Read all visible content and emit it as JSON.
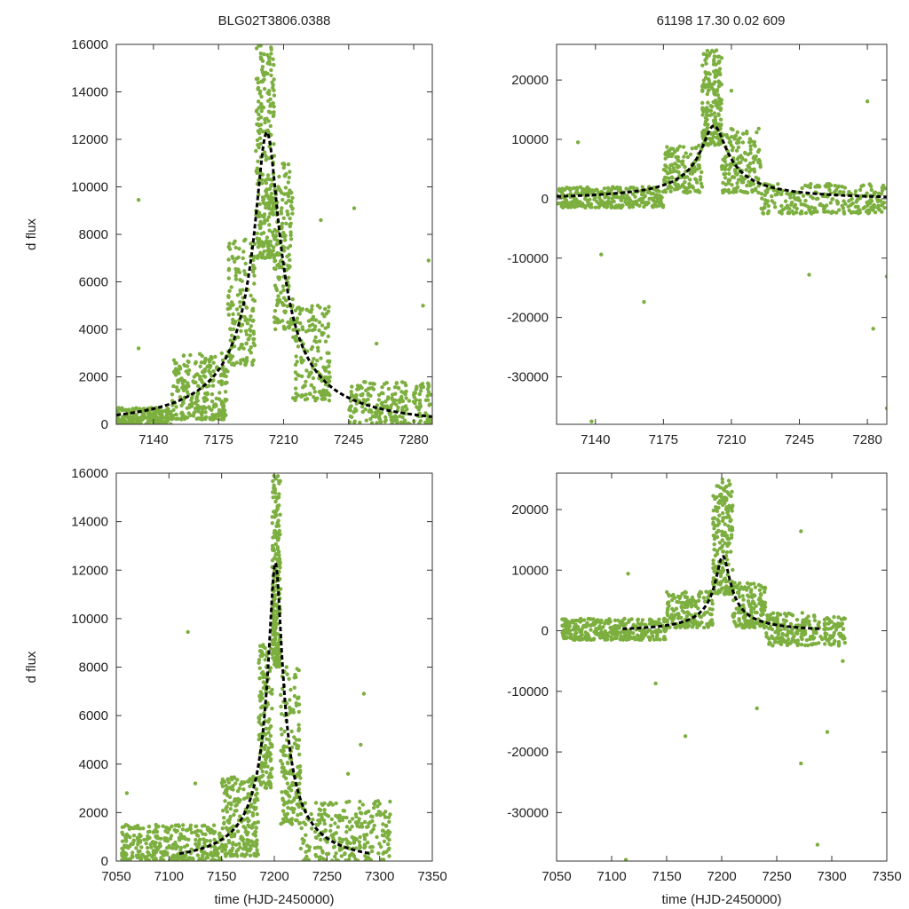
{
  "header": {
    "left_title": "BLG02T3806.0388",
    "right_title": "61198  17.30  0.02  609"
  },
  "colors": {
    "points": "#7caf3f",
    "model": "#000000",
    "frame": "#333333"
  },
  "chart_data": [
    {
      "type": "scatter",
      "panel": "top-left",
      "xlabel": "",
      "ylabel": "d flux",
      "xlim": [
        7120,
        7290
      ],
      "ylim": [
        0,
        16000
      ],
      "xticks": [
        7140,
        7175,
        7210,
        7245,
        7280
      ],
      "yticks": [
        0,
        2000,
        4000,
        6000,
        8000,
        10000,
        12000,
        14000,
        16000
      ],
      "series": [
        {
          "name": "observations",
          "style": "points",
          "clusters": [
            {
              "x": [
                7120,
                7150
              ],
              "y": [
                0,
                700
              ],
              "n": 220
            },
            {
              "x": [
                7150,
                7180
              ],
              "y": [
                200,
                3000
              ],
              "n": 260
            },
            {
              "x": [
                7180,
                7195
              ],
              "y": [
                2500,
                8000
              ],
              "n": 160
            },
            {
              "x": [
                7195,
                7205
              ],
              "y": [
                7000,
                16000
              ],
              "n": 260
            },
            {
              "x": [
                7205,
                7215
              ],
              "y": [
                4000,
                11000
              ],
              "n": 170
            },
            {
              "x": [
                7215,
                7235
              ],
              "y": [
                1000,
                5000
              ],
              "n": 170
            },
            {
              "x": [
                7245,
                7290
              ],
              "y": [
                0,
                1800
              ],
              "n": 230
            }
          ],
          "outliers": [
            [
              7132,
              9450
            ],
            [
              7132,
              3200
            ],
            [
              7248,
              9100
            ],
            [
              7288,
              6900
            ],
            [
              7285,
              5000
            ],
            [
              7230,
              8600
            ],
            [
              7260,
              3400
            ]
          ]
        },
        {
          "name": "model",
          "style": "dashed",
          "model": {
            "t0": 7201,
            "peak": 12300,
            "u0": 0.07,
            "tE": 90
          }
        }
      ]
    },
    {
      "type": "scatter",
      "panel": "top-right",
      "xlabel": "",
      "ylabel": "",
      "xlim": [
        7120,
        7290
      ],
      "ylim": [
        -38000,
        26000
      ],
      "xticks": [
        7140,
        7175,
        7210,
        7245,
        7280
      ],
      "yticks": [
        -30000,
        -20000,
        -10000,
        0,
        10000,
        20000
      ],
      "series": [
        {
          "name": "observations",
          "style": "points",
          "clusters": [
            {
              "x": [
                7120,
                7175
              ],
              "y": [
                -1500,
                2000
              ],
              "n": 300
            },
            {
              "x": [
                7175,
                7195
              ],
              "y": [
                1000,
                9000
              ],
              "n": 150
            },
            {
              "x": [
                7195,
                7205
              ],
              "y": [
                9000,
                25000
              ],
              "n": 200
            },
            {
              "x": [
                7205,
                7225
              ],
              "y": [
                1000,
                12000
              ],
              "n": 160
            },
            {
              "x": [
                7225,
                7290
              ],
              "y": [
                -2500,
                2500
              ],
              "n": 260
            }
          ],
          "outliers": [
            [
              7131,
              9500
            ],
            [
              7165,
              -17400
            ],
            [
              7283,
              -21900
            ],
            [
              7290,
              -35300
            ],
            [
              7210,
              18200
            ],
            [
              7280,
              16400
            ],
            [
              7250,
              -12800
            ],
            [
              7143,
              -9400
            ],
            [
              7290,
              -13100
            ],
            [
              7138,
              -37500
            ]
          ]
        },
        {
          "name": "model",
          "style": "dashed",
          "model": {
            "t0": 7201,
            "peak": 12300,
            "u0": 0.07,
            "tE": 90
          }
        }
      ]
    },
    {
      "type": "scatter",
      "panel": "bottom-left",
      "xlabel": "time (HJD-2450000)",
      "ylabel": "d flux",
      "xlim": [
        7050,
        7350
      ],
      "ylim": [
        0,
        16000
      ],
      "xticks": [
        7050,
        7100,
        7150,
        7200,
        7250,
        7300,
        7350
      ],
      "yticks": [
        0,
        2000,
        4000,
        6000,
        8000,
        10000,
        12000,
        14000,
        16000
      ],
      "series": [
        {
          "name": "observations",
          "style": "points",
          "clusters": [
            {
              "x": [
                7055,
                7150
              ],
              "y": [
                0,
                1500
              ],
              "n": 340
            },
            {
              "x": [
                7150,
                7185
              ],
              "y": [
                200,
                3500
              ],
              "n": 220
            },
            {
              "x": [
                7185,
                7198
              ],
              "y": [
                3000,
                9000
              ],
              "n": 150
            },
            {
              "x": [
                7198,
                7206
              ],
              "y": [
                8000,
                16000
              ],
              "n": 240
            },
            {
              "x": [
                7206,
                7225
              ],
              "y": [
                1500,
                8000
              ],
              "n": 170
            },
            {
              "x": [
                7225,
                7310
              ],
              "y": [
                0,
                2500
              ],
              "n": 260
            }
          ],
          "outliers": [
            [
              7060,
              2800
            ],
            [
              7118,
              9450
            ],
            [
              7125,
              3200
            ],
            [
              7285,
              6900
            ],
            [
              7282,
              4800
            ],
            [
              7270,
              3600
            ]
          ]
        },
        {
          "name": "model",
          "style": "dashed",
          "xrange": [
            7110,
            7290
          ],
          "model": {
            "t0": 7201,
            "peak": 12300,
            "u0": 0.07,
            "tE": 90
          }
        }
      ]
    },
    {
      "type": "scatter",
      "panel": "bottom-right",
      "xlabel": "time (HJD-2450000)",
      "ylabel": "",
      "xlim": [
        7050,
        7350
      ],
      "ylim": [
        -38000,
        26000
      ],
      "xticks": [
        7050,
        7100,
        7150,
        7200,
        7250,
        7300,
        7350
      ],
      "yticks": [
        -30000,
        -20000,
        -10000,
        0,
        10000,
        20000
      ],
      "series": [
        {
          "name": "observations",
          "style": "points",
          "clusters": [
            {
              "x": [
                7055,
                7150
              ],
              "y": [
                -1500,
                2000
              ],
              "n": 320
            },
            {
              "x": [
                7150,
                7192
              ],
              "y": [
                500,
                6500
              ],
              "n": 160
            },
            {
              "x": [
                7192,
                7210
              ],
              "y": [
                6000,
                25000
              ],
              "n": 200
            },
            {
              "x": [
                7210,
                7240
              ],
              "y": [
                500,
                8000
              ],
              "n": 150
            },
            {
              "x": [
                7240,
                7312
              ],
              "y": [
                -2500,
                3000
              ],
              "n": 240
            }
          ],
          "outliers": [
            [
              7115,
              9400
            ],
            [
              7167,
              -17400
            ],
            [
              7272,
              -21900
            ],
            [
              7287,
              -35300
            ],
            [
              7272,
              16400
            ],
            [
              7232,
              -12800
            ],
            [
              7140,
              -8700
            ],
            [
              7296,
              -16700
            ],
            [
              7113,
              -37800
            ],
            [
              7310,
              -5000
            ]
          ]
        },
        {
          "name": "model",
          "style": "dashed",
          "xrange": [
            7110,
            7290
          ],
          "model": {
            "t0": 7201,
            "peak": 12300,
            "u0": 0.07,
            "tE": 90
          }
        }
      ]
    }
  ]
}
